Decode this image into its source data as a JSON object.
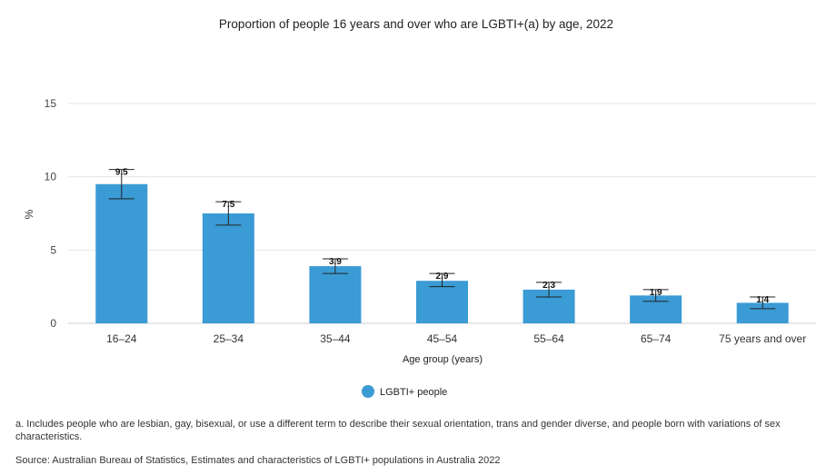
{
  "chart_data": {
    "type": "bar",
    "title": "Proportion of people 16 years and over who are LGBTI+(a) by age, 2022",
    "xlabel": "Age group (years)",
    "ylabel": "%",
    "ylim": [
      0,
      15
    ],
    "yticks": [
      0,
      5,
      10,
      15
    ],
    "categories": [
      "16–24",
      "25–34",
      "35–44",
      "45–54",
      "55–64",
      "65–74",
      "75 years and over"
    ],
    "series": [
      {
        "name": "LGBTI+ people",
        "color": "#3a9bd5",
        "values": [
          9.5,
          7.5,
          3.9,
          2.9,
          2.3,
          1.9,
          1.4
        ],
        "labels": [
          "9.5",
          "7.5",
          "3.9",
          "2.9",
          "2.3",
          "1.9",
          "1.4"
        ],
        "error_low": [
          8.5,
          6.7,
          3.4,
          2.5,
          1.8,
          1.5,
          1.0
        ],
        "error_high": [
          10.5,
          8.3,
          4.4,
          3.4,
          2.8,
          2.3,
          1.8
        ]
      }
    ],
    "legend": "bottom-center",
    "grid": true
  },
  "notes": {
    "footnote": "a. Includes people who are lesbian, gay, bisexual, or use a different term to describe their sexual orientation, trans and gender diverse, and people born with variations of sex characteristics.",
    "source": "Source: Australian Bureau of Statistics, Estimates and characteristics of LGBTI+ populations in Australia 2022"
  }
}
